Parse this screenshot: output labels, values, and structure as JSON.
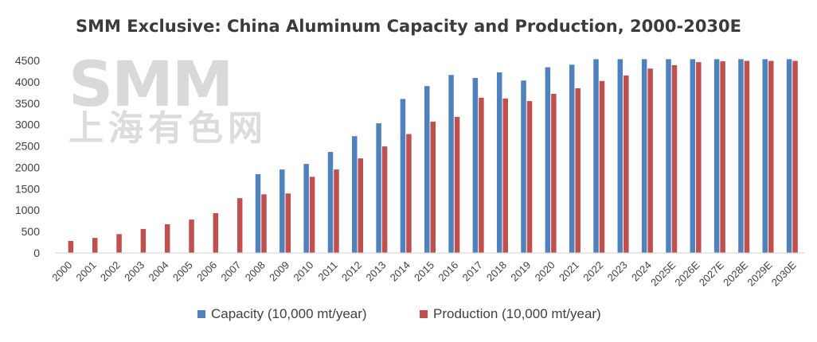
{
  "chart_data": {
    "type": "bar",
    "title": "SMM Exclusive: China Aluminum Capacity and Production, 2000-2030E",
    "xlabel": "",
    "ylabel": "",
    "ylim": [
      0,
      4500
    ],
    "yticks": [
      0,
      500,
      1000,
      1500,
      2000,
      2500,
      3000,
      3500,
      4000,
      4500
    ],
    "grid": false,
    "legend_position": "bottom",
    "categories": [
      "2000",
      "2001",
      "2002",
      "2003",
      "2004",
      "2005",
      "2006",
      "2007",
      "2008",
      "2009",
      "2010",
      "2011",
      "2012",
      "2013",
      "2014",
      "2015",
      "2016",
      "2017",
      "2018",
      "2019",
      "2020",
      "2021",
      "2022",
      "2023",
      "2024",
      "2025E",
      "2026E",
      "2027E",
      "2028E",
      "2029E",
      "2030E"
    ],
    "series": [
      {
        "name": "Capacity (10,000 mt/year)",
        "color": "#4f81bd",
        "values": [
          null,
          null,
          null,
          null,
          null,
          null,
          null,
          null,
          1840,
          1950,
          2080,
          2360,
          2730,
          3030,
          3600,
          3900,
          4160,
          4090,
          4220,
          4030,
          4340,
          4400,
          4530,
          4530,
          4530,
          4530,
          4530,
          4530,
          4530,
          4530,
          4530
        ]
      },
      {
        "name": "Production (10,000 mt/year)",
        "color": "#c0504d",
        "values": [
          280,
          350,
          440,
          560,
          670,
          780,
          930,
          1280,
          1370,
          1390,
          1780,
          1950,
          2210,
          2490,
          2780,
          3070,
          3180,
          3630,
          3610,
          3550,
          3720,
          3850,
          4020,
          4150,
          4310,
          4390,
          4460,
          4480,
          4490,
          4490,
          4490
        ]
      }
    ]
  },
  "watermark": {
    "text_en": "SMM",
    "text_cn": "上海有色网"
  }
}
